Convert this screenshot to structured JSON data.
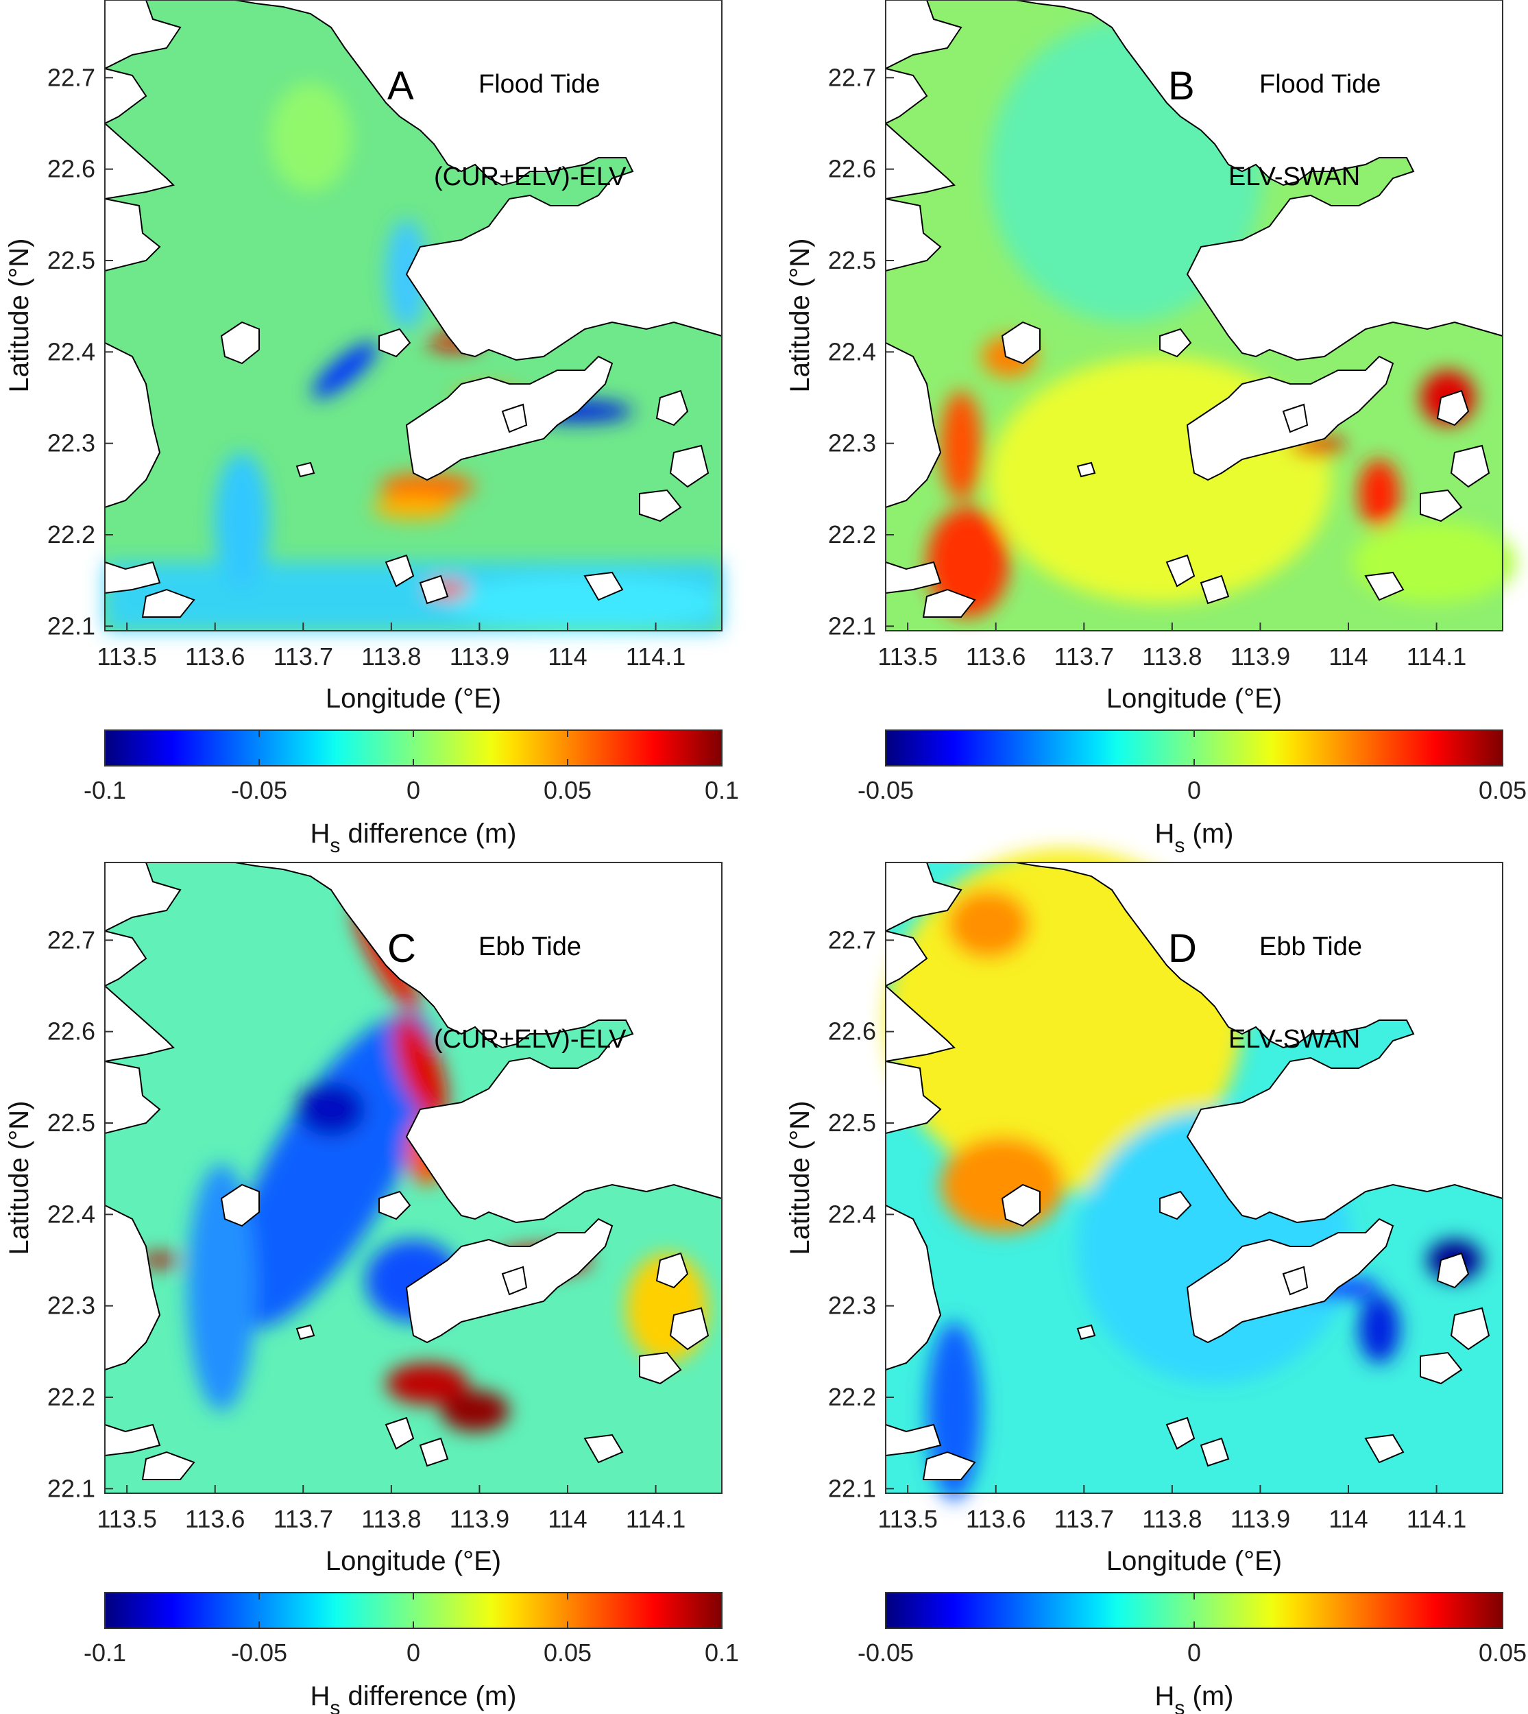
{
  "panels": [
    {
      "letter": "A",
      "tide": "Flood Tide",
      "quantity": "(CUR+ELV)-ELV",
      "x_label": "Longitude (°E)",
      "y_label": "Latitude (°N)",
      "x_ticks": [
        "113.5",
        "113.6",
        "113.7",
        "113.8",
        "113.9",
        "114",
        "114.1"
      ],
      "y_ticks": [
        "22.7",
        "22.6",
        "22.5",
        "22.4",
        "22.3",
        "22.2",
        "22.1"
      ],
      "colorbar": {
        "ticks": [
          "-0.1",
          "-0.05",
          "0",
          "0.05",
          "0.1"
        ],
        "label_main": "H",
        "label_sub": "s",
        "label_rest": " difference (m)",
        "range": [
          -0.1,
          0.1
        ]
      }
    },
    {
      "letter": "B",
      "tide": "Flood Tide",
      "quantity": "ELV-SWAN",
      "x_label": "Longitude (°E)",
      "y_label": "Latitude (°N)",
      "x_ticks": [
        "113.5",
        "113.6",
        "113.7",
        "113.8",
        "113.9",
        "114",
        "114.1"
      ],
      "y_ticks": [
        "22.7",
        "22.6",
        "22.5",
        "22.4",
        "22.3",
        "22.2",
        "22.1"
      ],
      "colorbar": {
        "ticks": [
          "-0.05",
          "0",
          "0.05"
        ],
        "label_main": "H",
        "label_sub": "s",
        "label_rest": " (m)",
        "range": [
          -0.05,
          0.05
        ]
      }
    },
    {
      "letter": "C",
      "tide": "Ebb Tide",
      "quantity": "(CUR+ELV)-ELV",
      "x_label": "Longitude (°E)",
      "y_label": "Latitude (°N)",
      "x_ticks": [
        "113.5",
        "113.6",
        "113.7",
        "113.8",
        "113.9",
        "114",
        "114.1"
      ],
      "y_ticks": [
        "22.7",
        "22.6",
        "22.5",
        "22.4",
        "22.3",
        "22.2",
        "22.1"
      ],
      "colorbar": {
        "ticks": [
          "-0.1",
          "-0.05",
          "0",
          "0.05",
          "0.1"
        ],
        "label_main": "H",
        "label_sub": "s",
        "label_rest": " difference (m)",
        "range": [
          -0.1,
          0.1
        ]
      }
    },
    {
      "letter": "D",
      "tide": "Ebb Tide",
      "quantity": "ELV-SWAN",
      "x_label": "Longitude (°E)",
      "y_label": "Latitude (°N)",
      "x_ticks": [
        "113.5",
        "113.6",
        "113.7",
        "113.8",
        "113.9",
        "114",
        "114.1"
      ],
      "y_ticks": [
        "22.7",
        "22.6",
        "22.5",
        "22.4",
        "22.3",
        "22.2",
        "22.1"
      ],
      "colorbar": {
        "ticks": [
          "-0.05",
          "0",
          "0.05"
        ],
        "label_main": "H",
        "label_sub": "s",
        "label_rest": " (m)",
        "range": [
          -0.05,
          0.05
        ]
      }
    }
  ],
  "colormap": "jet"
}
